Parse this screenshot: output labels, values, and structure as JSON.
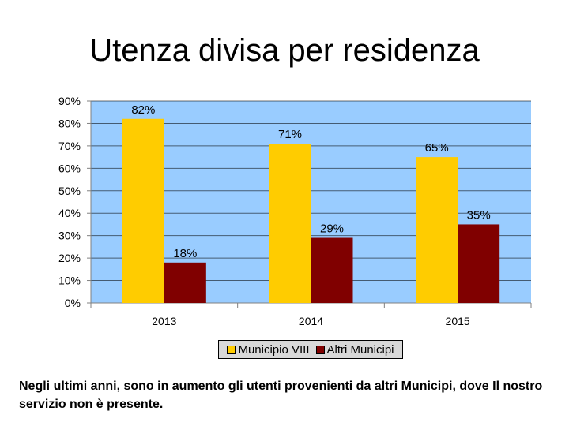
{
  "slide": {
    "title": "Utenza divisa per residenza",
    "caption": "Negli ultimi anni, sono in aumento gli utenti provenienti da altri Municipi, dove Il nostro servizio non è presente."
  },
  "chart_data": {
    "type": "bar",
    "categories": [
      "2013",
      "2014",
      "2015"
    ],
    "series": [
      {
        "name": "Municipio VIII",
        "values": [
          82,
          71,
          65
        ],
        "labels": [
          "82%",
          "71%",
          "65%"
        ],
        "color": "#ffcc00"
      },
      {
        "name": "Altri Municipi",
        "values": [
          18,
          29,
          35
        ],
        "labels": [
          "18%",
          "29%",
          "35%"
        ],
        "color": "#800000"
      }
    ],
    "ylim": [
      0,
      90
    ],
    "yticks": [
      0,
      10,
      20,
      30,
      40,
      50,
      60,
      70,
      80,
      90
    ],
    "ytick_labels": [
      "0%",
      "10%",
      "20%",
      "30%",
      "40%",
      "50%",
      "60%",
      "70%",
      "80%",
      "90%"
    ],
    "grid": true,
    "plot_background": "#99ccff",
    "legend_position": "bottom"
  }
}
